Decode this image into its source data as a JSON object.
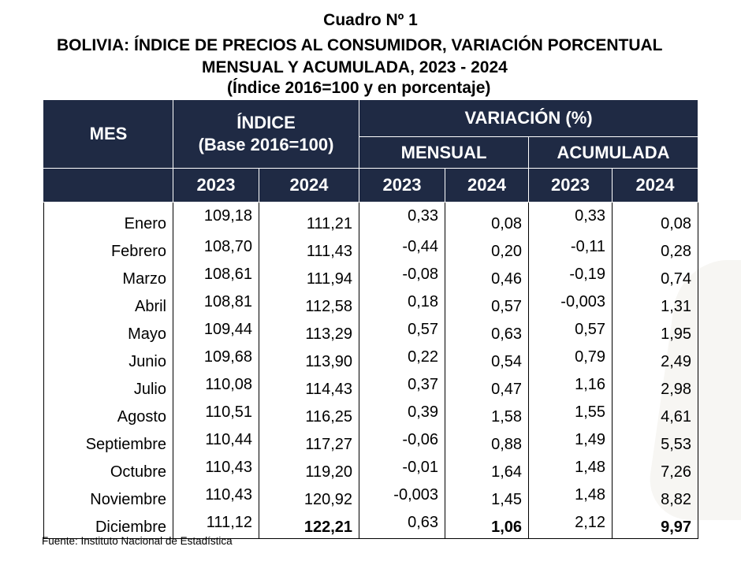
{
  "titles": {
    "line1": "Cuadro Nº 1",
    "line2": "BOLIVIA: ÍNDICE DE PRECIOS AL CONSUMIDOR, VARIACIÓN PORCENTUAL",
    "line3": "MENSUAL Y ACUMULADA, 2023 - 2024",
    "line4": "(Índice 2016=100 y en porcentaje)"
  },
  "header": {
    "mes": "MES",
    "indice_line1": "ÍNDICE",
    "indice_line2": "(Base 2016=100)",
    "variacion": "VARIACIÓN (%)",
    "mensual": "MENSUAL",
    "acumulada": "ACUMULADA",
    "years": [
      "2023",
      "2024",
      "2023",
      "2024",
      "2023",
      "2024"
    ]
  },
  "rows": [
    {
      "mes": "Enero",
      "idx2023": "109,18",
      "idx2024": "111,21",
      "men2023": "0,33",
      "men2024": "0,08",
      "acu2023": "0,33",
      "acu2024": "0,08"
    },
    {
      "mes": "Febrero",
      "idx2023": "108,70",
      "idx2024": "111,43",
      "men2023": "-0,44",
      "men2024": "0,20",
      "acu2023": "-0,11",
      "acu2024": "0,28"
    },
    {
      "mes": "Marzo",
      "idx2023": "108,61",
      "idx2024": "111,94",
      "men2023": "-0,08",
      "men2024": "0,46",
      "acu2023": "-0,19",
      "acu2024": "0,74"
    },
    {
      "mes": "Abril",
      "idx2023": "108,81",
      "idx2024": "112,58",
      "men2023": "0,18",
      "men2024": "0,57",
      "acu2023": "-0,003",
      "acu2024": "1,31"
    },
    {
      "mes": "Mayo",
      "idx2023": "109,44",
      "idx2024": "113,29",
      "men2023": "0,57",
      "men2024": "0,63",
      "acu2023": "0,57",
      "acu2024": "1,95"
    },
    {
      "mes": "Junio",
      "idx2023": "109,68",
      "idx2024": "113,90",
      "men2023": "0,22",
      "men2024": "0,54",
      "acu2023": "0,79",
      "acu2024": "2,49"
    },
    {
      "mes": "Julio",
      "idx2023": "110,08",
      "idx2024": "114,43",
      "men2023": "0,37",
      "men2024": "0,47",
      "acu2023": "1,16",
      "acu2024": "2,98"
    },
    {
      "mes": "Agosto",
      "idx2023": "110,51",
      "idx2024": "116,25",
      "men2023": "0,39",
      "men2024": "1,58",
      "acu2023": "1,55",
      "acu2024": "4,61"
    },
    {
      "mes": "Septiembre",
      "idx2023": "110,44",
      "idx2024": "117,27",
      "men2023": "-0,06",
      "men2024": "0,88",
      "acu2023": "1,49",
      "acu2024": "5,53"
    },
    {
      "mes": "Octubre",
      "idx2023": "110,43",
      "idx2024": "119,20",
      "men2023": "-0,01",
      "men2024": "1,64",
      "acu2023": "1,48",
      "acu2024": "7,26"
    },
    {
      "mes": "Noviembre",
      "idx2023": "110,43",
      "idx2024": "120,92",
      "men2023": "-0,003",
      "men2024": "1,45",
      "acu2023": "1,48",
      "acu2024": "8,82"
    },
    {
      "mes": "Diciembre",
      "idx2023": "111,12",
      "idx2024": "122,21",
      "men2023": "0,63",
      "men2024": "1,06",
      "acu2023": "2,12",
      "acu2024": "9,97"
    }
  ],
  "source": "Fuente: Instituto Nacional de Estadística",
  "colors": {
    "header_bg": "#1f2a44",
    "header_text": "#ffffff"
  }
}
